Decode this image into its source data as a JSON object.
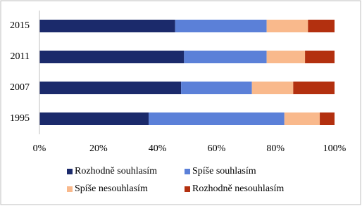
{
  "chart_data": {
    "type": "stacked-bar-horizontal",
    "categories": [
      "2015",
      "2011",
      "2007",
      "1995"
    ],
    "series": [
      {
        "name": "Rozhodně souhlasím",
        "color": "#1b2a6b",
        "values": [
          46,
          49,
          48,
          37
        ]
      },
      {
        "name": "Spíše souhlasím",
        "color": "#5b80d8",
        "values": [
          31,
          28,
          24,
          46
        ]
      },
      {
        "name": "Spíše nesouhlasím",
        "color": "#f9b98c",
        "values": [
          14,
          13,
          14,
          12
        ]
      },
      {
        "name": "Rozhodně nesouhlasím",
        "color": "#b3300f",
        "values": [
          9,
          10,
          14,
          5
        ]
      }
    ],
    "xlim": [
      0,
      100
    ],
    "xticks": [
      {
        "value": 0,
        "label": "0%"
      },
      {
        "value": 20,
        "label": "20%"
      },
      {
        "value": 40,
        "label": "40%"
      },
      {
        "value": 60,
        "label": "60%"
      },
      {
        "value": 80,
        "label": "80%"
      },
      {
        "value": 100,
        "label": "100%"
      }
    ]
  }
}
